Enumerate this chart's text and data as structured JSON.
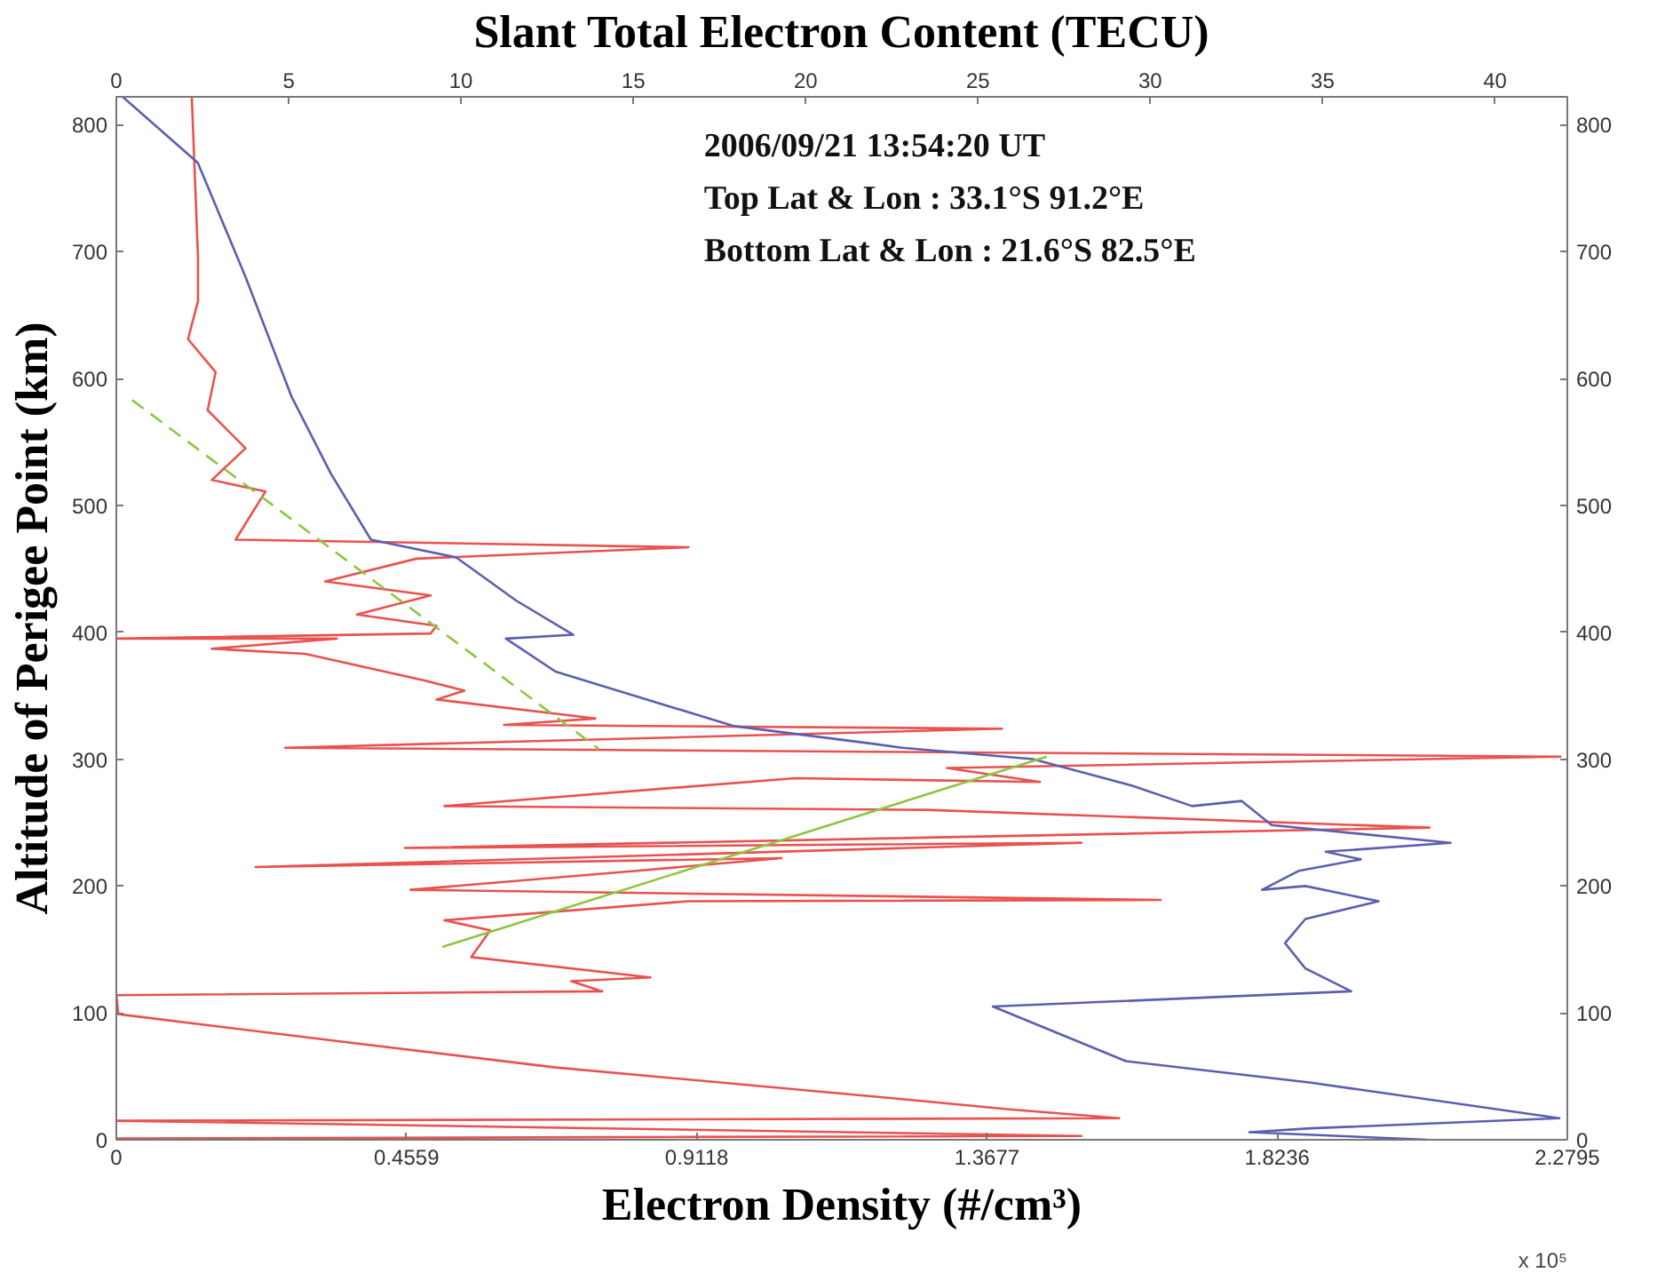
{
  "chart_data": {
    "type": "line",
    "x2label": "Slant Total Electron Content (TECU)",
    "xlabel": "Electron Density (#/cm³)",
    "ylabel": "Altitude of Perigee Point (km)",
    "annotations": [
      "2006/09/21 13:54:20 UT",
      "Top Lat & Lon : 33.1°S  91.2°E",
      "Bottom Lat & Lon : 21.6°S  82.5°E",
      "x 10⁵"
    ],
    "xlim": [
      0,
      2.2795
    ],
    "xticks": [
      0,
      0.4559,
      0.9118,
      1.3677,
      1.8236,
      2.2795
    ],
    "x2lim": [
      0,
      42.1
    ],
    "x2ticks": [
      0,
      5,
      10,
      15,
      20,
      25,
      30,
      35,
      40
    ],
    "ylim": [
      0,
      822
    ],
    "yticks": [
      0,
      100,
      200,
      300,
      400,
      500,
      600,
      700,
      800
    ],
    "y2lim": [
      0,
      822
    ],
    "y2ticks": [
      0,
      100,
      200,
      300,
      400,
      500,
      600,
      700,
      800
    ],
    "grid": false,
    "marker": "none",
    "series": [
      {
        "color": "#e8524f",
        "axis": "x2",
        "line_style": "solid",
        "x": [
          2.19,
          2.37,
          2.37,
          2.08,
          2.88,
          2.65,
          3.75,
          2.77,
          4.33,
          3.46,
          16.6,
          8.71,
          6.06,
          9.12,
          6.98,
          9.29,
          9.12,
          0,
          6.4,
          2.77,
          5.48,
          8.94,
          10.1,
          9.29,
          13.9,
          11.25,
          25.7,
          4.9,
          41.9,
          24.1,
          26.8,
          19.7,
          9.52,
          23.5,
          38.1,
          8.37,
          28.0,
          4.04,
          19.3,
          15.1,
          8.54,
          30.3,
          16.6,
          9.52,
          10.85,
          10.3,
          15.5,
          13.2,
          14.1,
          0,
          0.06,
          6.64,
          12.75,
          22.8,
          25.9,
          29.1,
          0,
          28.0,
          0
        ],
        "values": [
          822,
          695,
          661,
          631,
          605,
          575,
          545,
          520,
          511,
          473,
          467,
          458,
          440,
          429,
          414,
          405,
          399,
          395,
          395,
          387,
          383,
          362,
          354,
          347,
          332,
          327,
          324,
          309,
          302,
          293,
          282,
          285,
          263,
          260,
          246,
          230,
          234,
          215,
          222,
          212,
          197,
          189,
          188,
          173,
          165,
          144,
          128,
          125,
          117,
          114,
          99,
          77,
          57,
          32,
          24,
          17,
          15,
          3,
          1
        ]
      },
      {
        "color": "#5a5fb0",
        "line_style": "solid",
        "x": [
          0.01,
          0.128,
          0.203,
          0.275,
          0.337,
          0.4,
          0.534,
          0.628,
          0.718,
          0.612,
          0.69,
          0.846,
          0.971,
          1.19,
          1.234,
          1.44,
          1.596,
          1.69,
          1.768,
          1.815,
          2.096,
          1.9,
          1.955,
          1.858,
          1.8,
          1.868,
          1.983,
          1.868,
          1.836,
          1.868,
          1.94,
          1.377,
          1.586,
          1.877,
          2.267,
          1.877,
          1.78,
          2.06
        ],
        "values": [
          822,
          770,
          680,
          586,
          525,
          473,
          459,
          425,
          398,
          395,
          369,
          345,
          326,
          312,
          309,
          300,
          279,
          263,
          267,
          248,
          234,
          227,
          221,
          212,
          197,
          200,
          188,
          174,
          155,
          135,
          117,
          105,
          62,
          45,
          17,
          9,
          6,
          0
        ]
      },
      {
        "color": "#8cc63f",
        "axis": "x2",
        "line_style": "dashed",
        "x": [
          0.46,
          14.0
        ],
        "values": [
          583,
          308
        ]
      },
      {
        "color": "#8cc63f",
        "axis": "x2",
        "line_style": "solid",
        "x": [
          9.46,
          27.0
        ],
        "values": [
          152,
          302
        ]
      }
    ]
  }
}
